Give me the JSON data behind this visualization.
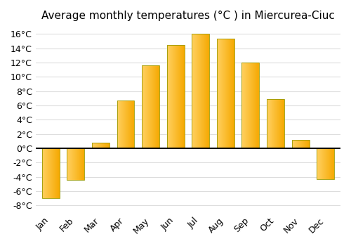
{
  "title": "Average monthly temperatures (°C ) in Miercurea-Ciuc",
  "months": [
    "Jan",
    "Feb",
    "Mar",
    "Apr",
    "May",
    "Jun",
    "Jul",
    "Aug",
    "Sep",
    "Oct",
    "Nov",
    "Dec"
  ],
  "values": [
    -7.0,
    -4.4,
    0.8,
    6.7,
    11.6,
    14.5,
    16.0,
    15.3,
    12.0,
    6.9,
    1.2,
    -4.3
  ],
  "bar_color_light": "#FFD060",
  "bar_color_dark": "#F5A800",
  "bar_edge_color": "#999900",
  "background_color": "#FFFFFF",
  "grid_color": "#DDDDDD",
  "ylim": [
    -9,
    17
  ],
  "yticks": [
    -8,
    -6,
    -4,
    -2,
    0,
    2,
    4,
    6,
    8,
    10,
    12,
    14,
    16
  ],
  "title_fontsize": 11,
  "tick_fontsize": 9,
  "bar_width": 0.7
}
